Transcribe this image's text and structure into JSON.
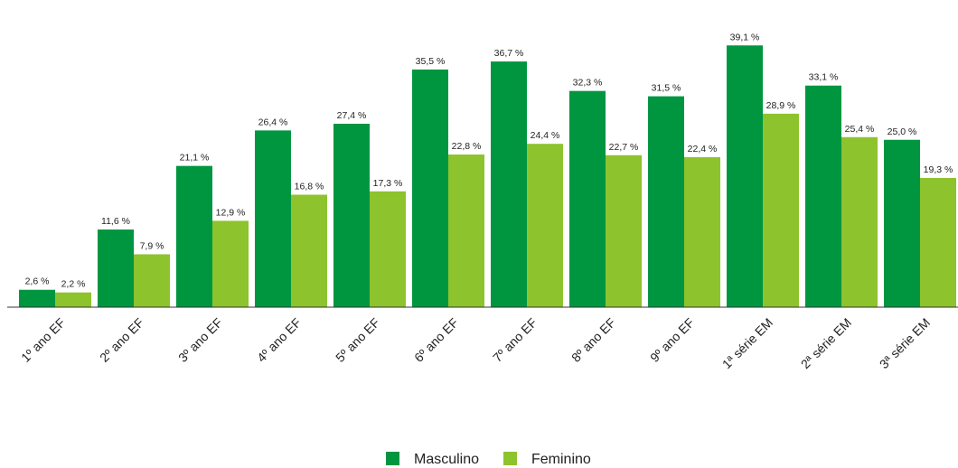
{
  "chart_data": {
    "type": "bar",
    "categories": [
      "1º ano EF",
      "2º ano EF",
      "3º ano EF",
      "4º ano EF",
      "5º ano EF",
      "6º ano EF",
      "7º ano EF",
      "8º ano EF",
      "9º ano EF",
      "1ª série EM",
      "2ª série EM",
      "3ª série EM"
    ],
    "series": [
      {
        "name": "Masculino",
        "color": "#009640",
        "values": [
          2.6,
          11.6,
          21.1,
          26.4,
          27.4,
          35.5,
          36.7,
          32.3,
          31.5,
          39.1,
          33.1,
          25.0
        ],
        "labels": [
          "2,6 %",
          "11,6 %",
          "21,1 %",
          "26,4 %",
          "27,4 %",
          "35,5 %",
          "36,7 %",
          "32,3 %",
          "31,5 %",
          "39,1 %",
          "33,1 %",
          "25,0 %"
        ]
      },
      {
        "name": "Feminino",
        "color": "#8dc32d",
        "values": [
          2.2,
          7.9,
          12.9,
          16.8,
          17.3,
          22.8,
          24.4,
          22.7,
          22.4,
          28.9,
          25.4,
          19.3
        ],
        "labels": [
          "2,2 %",
          "7,9 %",
          "12,9 %",
          "16,8 %",
          "17,3 %",
          "22,8 %",
          "24,4 %",
          "22,7 %",
          "22,4 %",
          "28,9 %",
          "25,4 %",
          "19,3 %"
        ]
      }
    ],
    "title": "",
    "xlabel": "",
    "ylabel": "",
    "ylim": [
      0,
      40
    ],
    "grid": false,
    "legend": "bottom-center"
  }
}
